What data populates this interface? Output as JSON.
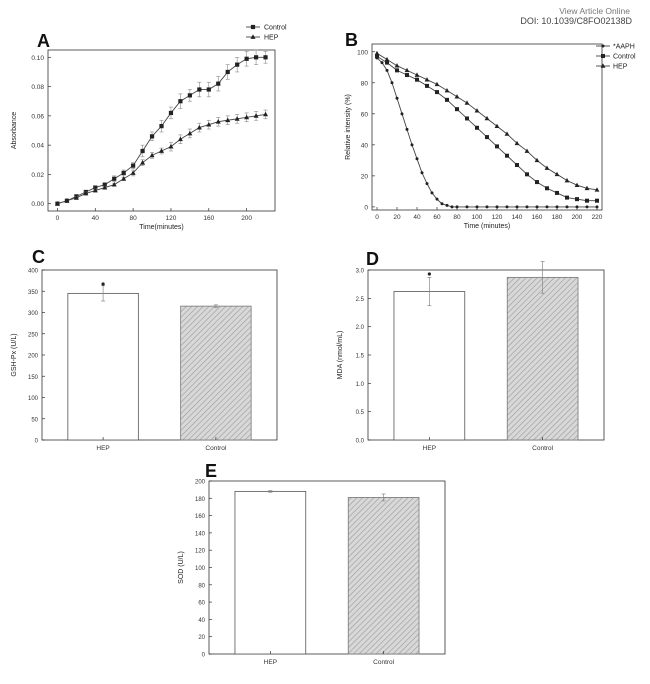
{
  "header": {
    "view_article": "View Article Online",
    "doi": "DOI: 10.1039/C8FO02138D"
  },
  "chart_data": [
    {
      "panel": "A",
      "type": "line",
      "xlabel": "Time(minutes)",
      "ylabel": "Absorbance",
      "xlim": [
        -10,
        230
      ],
      "ylim": [
        -0.005,
        0.105
      ],
      "xticks": [
        0,
        40,
        80,
        120,
        160,
        200
      ],
      "yticks": [
        0.0,
        0.02,
        0.04,
        0.06,
        0.08,
        0.1
      ],
      "ytick_labels": [
        "0.00",
        "0.02",
        "0.04",
        "0.06",
        "0.08",
        "0.10"
      ],
      "legend_position": "top-right",
      "series": [
        {
          "name": "Control",
          "marker": "square",
          "x": [
            0,
            10,
            20,
            30,
            40,
            50,
            60,
            70,
            80,
            90,
            100,
            110,
            120,
            130,
            140,
            150,
            160,
            170,
            180,
            190,
            200,
            210,
            220
          ],
          "y": [
            0.0,
            0.002,
            0.005,
            0.008,
            0.011,
            0.013,
            0.017,
            0.021,
            0.026,
            0.036,
            0.046,
            0.053,
            0.062,
            0.07,
            0.074,
            0.078,
            0.078,
            0.082,
            0.09,
            0.095,
            0.099,
            0.1,
            0.1
          ],
          "err": [
            0.0,
            0.0,
            0.001,
            0.001,
            0.001,
            0.001,
            0.002,
            0.002,
            0.002,
            0.004,
            0.003,
            0.004,
            0.004,
            0.005,
            0.004,
            0.005,
            0.005,
            0.005,
            0.005,
            0.005,
            0.005,
            0.005,
            0.004
          ]
        },
        {
          "name": "HEP",
          "marker": "triangle",
          "x": [
            0,
            10,
            20,
            30,
            40,
            50,
            60,
            70,
            80,
            90,
            100,
            110,
            120,
            130,
            140,
            150,
            160,
            170,
            180,
            190,
            200,
            210,
            220
          ],
          "y": [
            0.0,
            0.002,
            0.004,
            0.007,
            0.009,
            0.011,
            0.013,
            0.017,
            0.021,
            0.028,
            0.033,
            0.036,
            0.039,
            0.044,
            0.048,
            0.052,
            0.054,
            0.056,
            0.057,
            0.058,
            0.059,
            0.06,
            0.061
          ],
          "err": [
            0.0,
            0.0,
            0.001,
            0.001,
            0.001,
            0.001,
            0.001,
            0.001,
            0.002,
            0.002,
            0.002,
            0.002,
            0.003,
            0.003,
            0.003,
            0.003,
            0.003,
            0.003,
            0.003,
            0.003,
            0.003,
            0.003,
            0.003
          ]
        }
      ]
    },
    {
      "panel": "B",
      "type": "line",
      "xlabel": "Time (minutes)",
      "ylabel": "Relative intensity (%)",
      "xlim": [
        -5,
        225
      ],
      "ylim": [
        -2,
        105
      ],
      "xticks": [
        0,
        20,
        40,
        60,
        80,
        100,
        120,
        140,
        160,
        180,
        200,
        220
      ],
      "yticks": [
        0,
        20,
        40,
        60,
        80,
        100
      ],
      "legend_position": "top-right",
      "series": [
        {
          "name": "AAPH",
          "marker": "star",
          "x": [
            0,
            5,
            10,
            15,
            20,
            25,
            30,
            35,
            40,
            45,
            50,
            55,
            60,
            65,
            70,
            75,
            80,
            90,
            100,
            110,
            120,
            130,
            140,
            150,
            160,
            170,
            180,
            190,
            200,
            210,
            220
          ],
          "y": [
            96,
            93,
            88,
            80,
            70,
            60,
            50,
            40,
            31,
            22,
            15,
            9,
            5,
            2,
            1,
            0,
            0,
            0,
            0,
            0,
            0,
            0,
            0,
            0,
            0,
            0,
            0,
            0,
            0,
            0,
            0
          ]
        },
        {
          "name": "Control",
          "marker": "square",
          "x": [
            0,
            10,
            20,
            30,
            40,
            50,
            60,
            70,
            80,
            90,
            100,
            110,
            120,
            130,
            140,
            150,
            160,
            170,
            180,
            190,
            200,
            210,
            220
          ],
          "y": [
            97,
            93,
            88,
            85,
            82,
            78,
            74,
            69,
            63,
            57,
            51,
            45,
            39,
            33,
            27,
            21,
            16,
            12,
            9,
            6,
            5,
            4,
            4
          ]
        },
        {
          "name": "HEP",
          "marker": "triangle",
          "x": [
            0,
            10,
            20,
            30,
            40,
            50,
            60,
            70,
            80,
            90,
            100,
            110,
            120,
            130,
            140,
            150,
            160,
            170,
            180,
            190,
            200,
            210,
            220
          ],
          "y": [
            99,
            95,
            91,
            88,
            85,
            82,
            79,
            75,
            71,
            67,
            62,
            57,
            52,
            47,
            41,
            36,
            30,
            25,
            21,
            17,
            14,
            12,
            11
          ]
        }
      ]
    },
    {
      "panel": "C",
      "type": "bar",
      "ylabel": "GSH-Px (U/L)",
      "ylim": [
        0,
        400
      ],
      "yticks": [
        0,
        50,
        100,
        150,
        200,
        250,
        300,
        350,
        400
      ],
      "categories": [
        "HEP",
        "Control"
      ],
      "values": [
        345,
        315
      ],
      "err": [
        18,
        3
      ],
      "point_marks": [
        367,
        null
      ]
    },
    {
      "panel": "D",
      "type": "bar",
      "ylabel": "MDA (nmol/mL)",
      "ylim": [
        0,
        3.0
      ],
      "yticks": [
        0.0,
        0.5,
        1.0,
        1.5,
        2.0,
        2.5,
        3.0
      ],
      "ytick_labels": [
        "0.0",
        "0.5",
        "1.0",
        "1.5",
        "2.0",
        "2.5",
        "3.0"
      ],
      "categories": [
        "HEP",
        "Control"
      ],
      "values": [
        2.62,
        2.87
      ],
      "err": [
        0.25,
        0.28
      ],
      "point_marks": [
        2.93,
        null
      ]
    },
    {
      "panel": "E",
      "type": "bar",
      "ylabel": "SOD (U/L)",
      "ylim": [
        0,
        200
      ],
      "yticks": [
        0,
        20,
        40,
        60,
        80,
        100,
        120,
        140,
        160,
        180,
        200
      ],
      "categories": [
        "HEP",
        "Control"
      ],
      "values": [
        188,
        181
      ],
      "err": [
        1,
        4
      ],
      "point_marks": [
        null,
        null
      ]
    }
  ],
  "colors": {
    "axis": "#333333",
    "line": "#444444",
    "marker": "#222222",
    "bar_hep_fill": "#ffffff",
    "bar_control_fill": "#d8d8d8",
    "hatch": "#9a9a9a",
    "error": "#888888"
  }
}
